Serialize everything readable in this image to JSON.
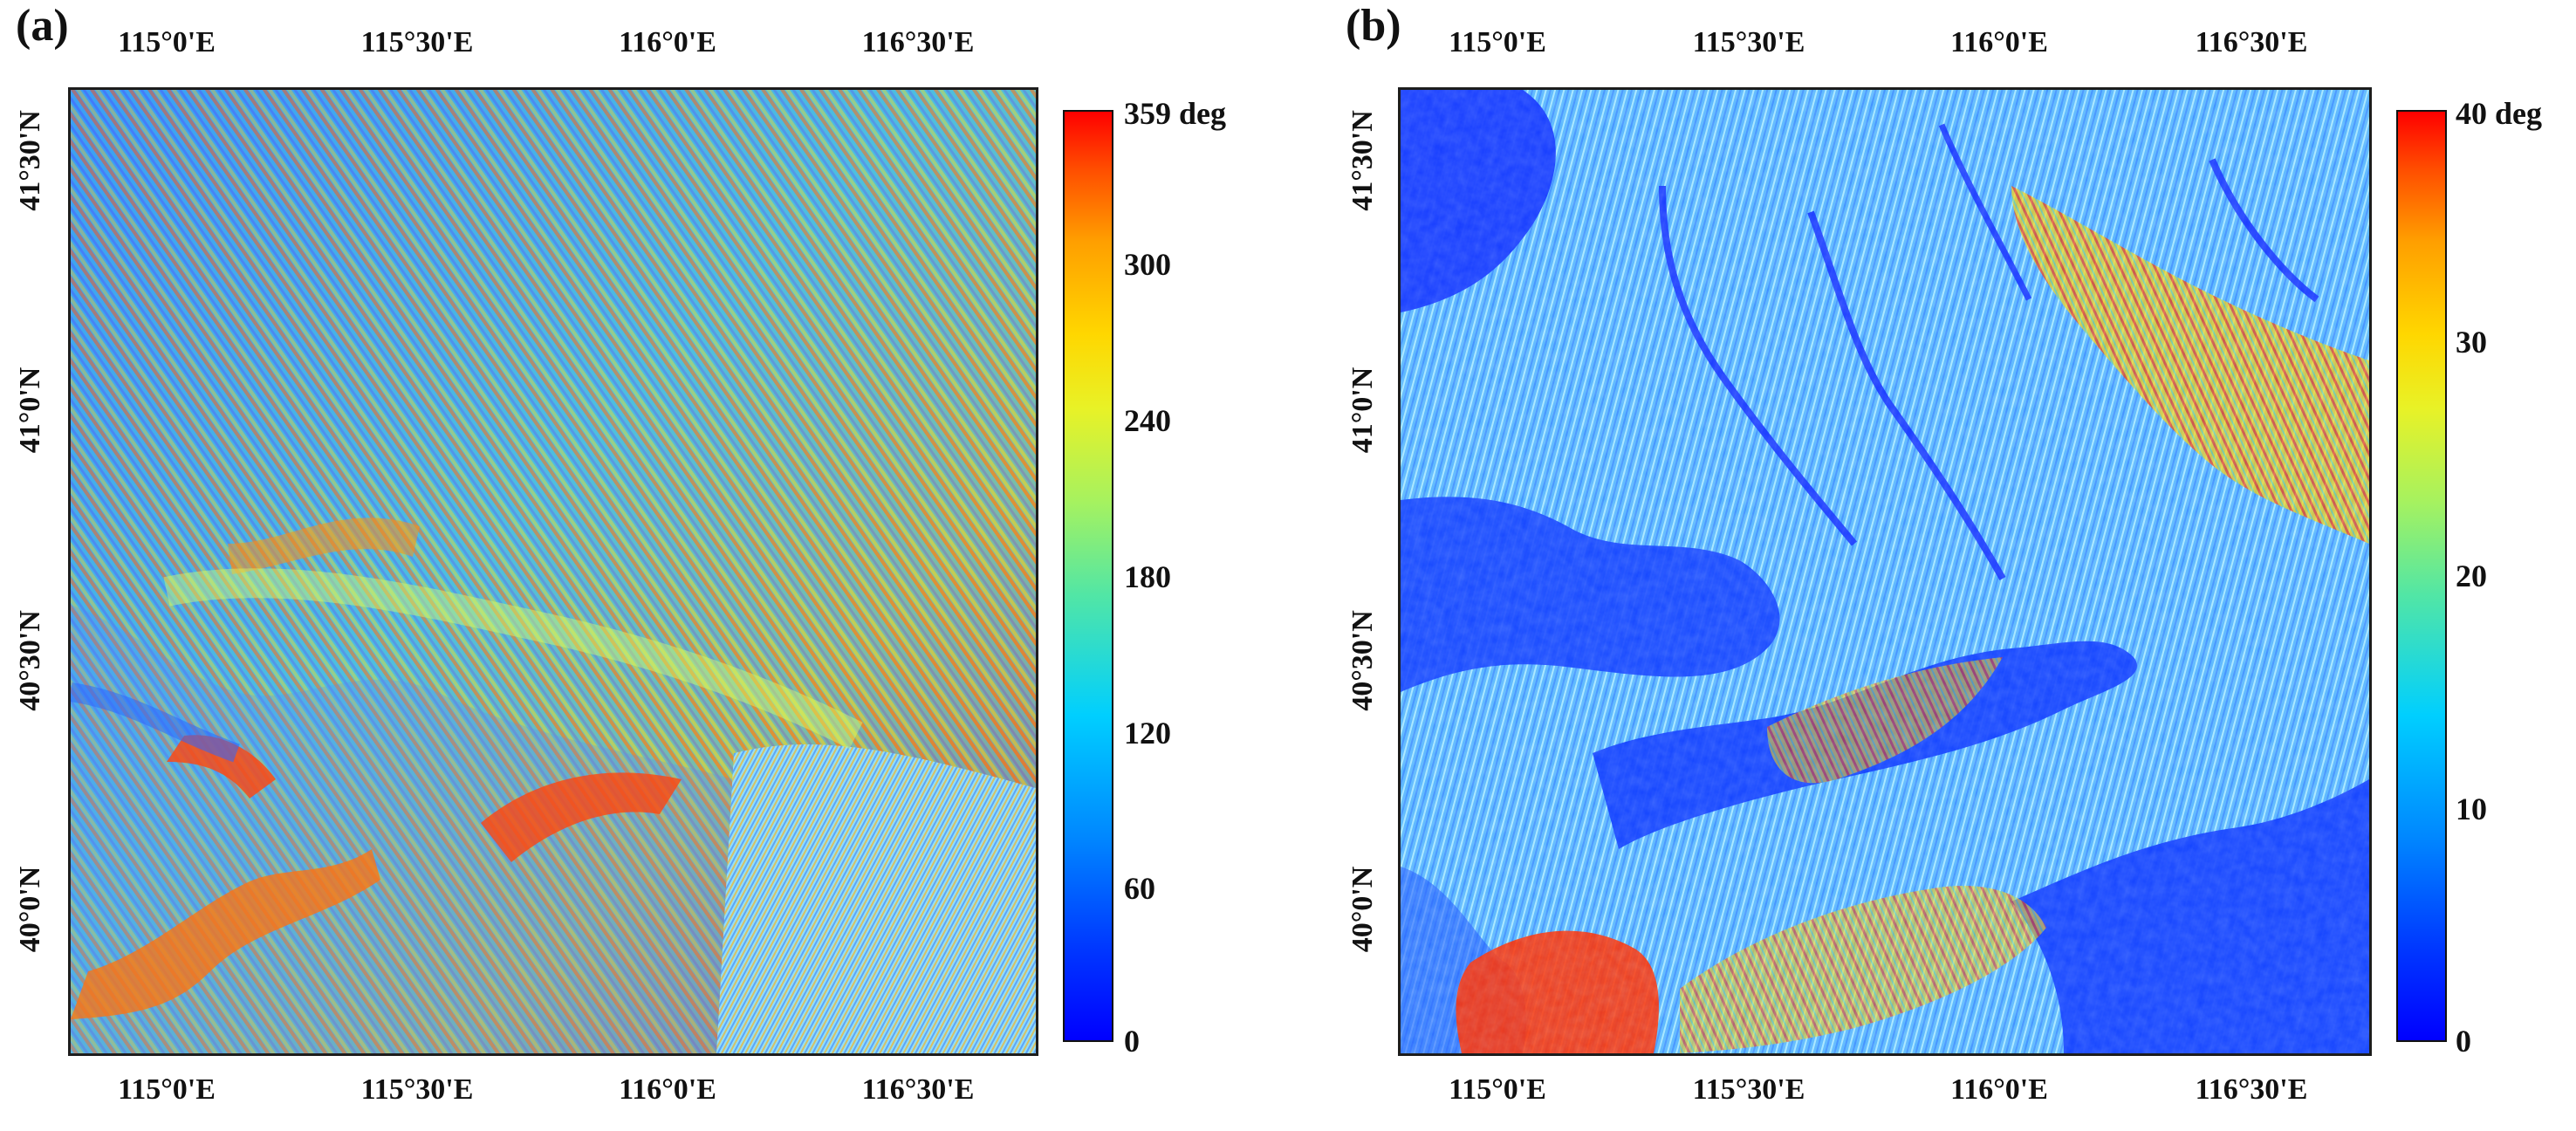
{
  "panels": [
    {
      "label": "(a)",
      "colorbar_max": "359 deg",
      "colorbar_ticks": [
        "300",
        "240",
        "180",
        "120",
        "60",
        "0"
      ],
      "x_ticks_top": [
        "115°0'E",
        "115°30'E",
        "116°0'E",
        "116°30'E"
      ],
      "x_ticks_bottom": [
        "115°0'E",
        "115°30'E",
        "116°0'E",
        "116°30'E"
      ],
      "y_ticks": [
        "41°30'N",
        "41°0'N",
        "40°30'N",
        "40°0'N"
      ]
    },
    {
      "label": "(b)",
      "colorbar_max": "40 deg",
      "colorbar_ticks": [
        "30",
        "20",
        "10",
        "0"
      ],
      "x_ticks_top": [
        "115°0'E",
        "115°30'E",
        "116°0'E",
        "116°30'E"
      ],
      "x_ticks_bottom": [
        "115°0'E",
        "115°30'E",
        "116°0'E",
        "116°30'E"
      ],
      "y_ticks": [
        "41°30'N",
        "41°0'N",
        "40°30'N",
        "40°0'N"
      ]
    }
  ],
  "colors": {
    "frame": "#1d1d1d",
    "scale_low": "#0000ff",
    "scale_mid": "#7cf07a",
    "scale_high": "#ff0000"
  }
}
